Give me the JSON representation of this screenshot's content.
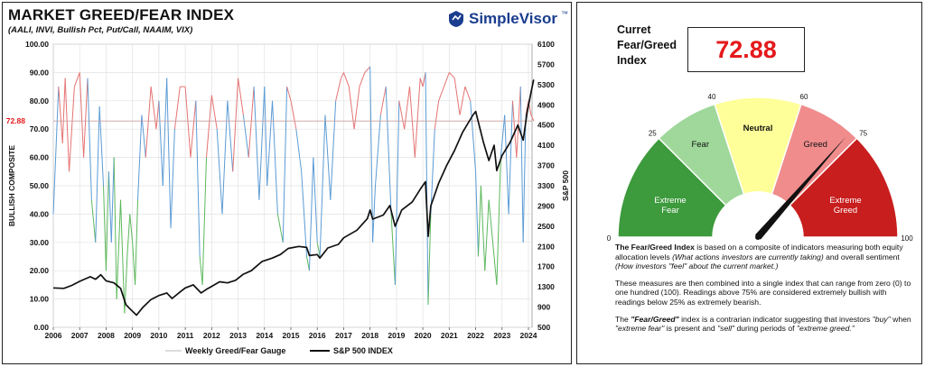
{
  "header": {
    "title": "MARKET GREED/FEAR INDEX",
    "subtitle": "(AALI, INVI, Bullish Pct, Put/Call, NAAIM, VIX)",
    "brand": "SimpleVisor",
    "brand_tm": "™"
  },
  "chart_data": {
    "type": "line",
    "title": "MARKET GREED/FEAR INDEX",
    "subtitle": "(AALI, INVI, Bullish Pct, Put/Call, NAAIM, VIX)",
    "ylabel_left": "BULLISH COMPOSITE",
    "ylabel_right": "S&P 500",
    "x_ticks": [
      "2006",
      "2007",
      "2008",
      "2009",
      "2010",
      "2011",
      "2012",
      "2013",
      "2014",
      "2015",
      "2016",
      "2017",
      "2018",
      "2019",
      "2020",
      "2021",
      "2022",
      "2023",
      "2024"
    ],
    "y_left_ticks": [
      "0.00",
      "10.00",
      "20.00",
      "30.00",
      "40.00",
      "50.00",
      "60.00",
      "70.00",
      "80.00",
      "90.00",
      "100.00"
    ],
    "y_left_range": [
      0,
      100
    ],
    "y_right_ticks": [
      "500",
      "900",
      "1300",
      "1700",
      "2100",
      "2500",
      "2900",
      "3300",
      "3700",
      "4100",
      "4500",
      "4900",
      "5300",
      "5700",
      "6100"
    ],
    "y_right_range": [
      500,
      6100
    ],
    "x_range": [
      2006,
      2024
    ],
    "reference_line": {
      "value": 72.88,
      "label": "72.88"
    },
    "grid": true,
    "legend_position": "bottom",
    "series": [
      {
        "name": "Weekly Greed/Fear Gauge",
        "axis": "left",
        "colors": {
          "high": "#e57373",
          "mid": "#5b9bd5",
          "low": "#5cb85c"
        },
        "x": [
          2006.0,
          2006.2,
          2006.35,
          2006.45,
          2006.6,
          2006.8,
          2007.0,
          2007.15,
          2007.3,
          2007.45,
          2007.6,
          2007.75,
          2007.9,
          2008.0,
          2008.1,
          2008.2,
          2008.3,
          2008.4,
          2008.55,
          2008.7,
          2008.8,
          2008.9,
          2009.0,
          2009.1,
          2009.2,
          2009.35,
          2009.5,
          2009.7,
          2009.9,
          2010.0,
          2010.15,
          2010.3,
          2010.45,
          2010.6,
          2010.8,
          2011.0,
          2011.2,
          2011.4,
          2011.55,
          2011.65,
          2011.8,
          2012.0,
          2012.2,
          2012.4,
          2012.6,
          2012.8,
          2013.0,
          2013.2,
          2013.4,
          2013.6,
          2013.8,
          2014.0,
          2014.1,
          2014.3,
          2014.5,
          2014.7,
          2014.85,
          2015.0,
          2015.2,
          2015.4,
          2015.6,
          2015.7,
          2015.85,
          2016.0,
          2016.1,
          2016.3,
          2016.5,
          2016.7,
          2016.9,
          2017.0,
          2017.2,
          2017.4,
          2017.6,
          2017.8,
          2018.0,
          2018.1,
          2018.2,
          2018.4,
          2018.6,
          2018.8,
          2018.95,
          2019.1,
          2019.3,
          2019.5,
          2019.7,
          2019.9,
          2020.0,
          2020.1,
          2020.2,
          2020.3,
          2020.45,
          2020.6,
          2020.8,
          2021.0,
          2021.2,
          2021.4,
          2021.6,
          2021.8,
          2022.0,
          2022.1,
          2022.2,
          2022.35,
          2022.5,
          2022.65,
          2022.8,
          2022.95,
          2023.1,
          2023.25,
          2023.4,
          2023.55,
          2023.7,
          2023.8,
          2023.9,
          2024.0,
          2024.1,
          2024.2
        ],
        "values": [
          40,
          85,
          65,
          88,
          55,
          85,
          90,
          60,
          88,
          45,
          30,
          78,
          50,
          20,
          55,
          30,
          60,
          10,
          45,
          5,
          25,
          40,
          30,
          15,
          45,
          75,
          60,
          85,
          70,
          80,
          50,
          88,
          35,
          70,
          85,
          85,
          60,
          80,
          25,
          15,
          60,
          82,
          70,
          40,
          80,
          55,
          88,
          75,
          60,
          85,
          45,
          85,
          50,
          80,
          40,
          30,
          85,
          80,
          70,
          55,
          25,
          20,
          60,
          30,
          25,
          75,
          45,
          80,
          88,
          90,
          85,
          70,
          85,
          90,
          92,
          30,
          50,
          75,
          85,
          40,
          15,
          80,
          70,
          85,
          60,
          88,
          85,
          90,
          8,
          40,
          70,
          80,
          85,
          90,
          88,
          75,
          85,
          80,
          55,
          25,
          50,
          20,
          45,
          30,
          15,
          60,
          75,
          40,
          80,
          60,
          85,
          30,
          75,
          80,
          75,
          72.88
        ]
      },
      {
        "name": "S&P 500 INDEX",
        "axis": "right",
        "color": "#111111",
        "x": [
          2006.0,
          2006.4,
          2006.7,
          2007.0,
          2007.4,
          2007.6,
          2007.8,
          2008.0,
          2008.3,
          2008.55,
          2008.75,
          2008.9,
          2009.15,
          2009.4,
          2009.7,
          2010.0,
          2010.3,
          2010.5,
          2010.8,
          2011.0,
          2011.3,
          2011.6,
          2011.8,
          2012.0,
          2012.3,
          2012.6,
          2012.9,
          2013.2,
          2013.5,
          2013.9,
          2014.3,
          2014.6,
          2014.9,
          2015.3,
          2015.6,
          2015.7,
          2016.0,
          2016.1,
          2016.4,
          2016.8,
          2017.0,
          2017.5,
          2017.9,
          2018.0,
          2018.1,
          2018.5,
          2018.75,
          2018.95,
          2019.2,
          2019.6,
          2019.9,
          2020.1,
          2020.2,
          2020.3,
          2020.6,
          2020.9,
          2021.2,
          2021.5,
          2021.9,
          2022.0,
          2022.3,
          2022.5,
          2022.7,
          2022.8,
          2023.0,
          2023.3,
          2023.6,
          2023.8,
          2023.95,
          2024.1,
          2024.2
        ],
        "values": [
          1280,
          1270,
          1330,
          1410,
          1500,
          1450,
          1540,
          1420,
          1380,
          1270,
          950,
          870,
          740,
          900,
          1050,
          1130,
          1180,
          1070,
          1200,
          1280,
          1340,
          1180,
          1250,
          1310,
          1400,
          1380,
          1430,
          1550,
          1620,
          1800,
          1870,
          1940,
          2060,
          2100,
          2080,
          1920,
          1940,
          1870,
          2070,
          2140,
          2270,
          2420,
          2650,
          2820,
          2640,
          2720,
          2910,
          2500,
          2820,
          2980,
          3230,
          3380,
          2300,
          2900,
          3350,
          3700,
          4000,
          4350,
          4700,
          4770,
          4150,
          3800,
          4100,
          3600,
          3900,
          4150,
          4500,
          4200,
          4750,
          5150,
          5400
        ]
      }
    ]
  },
  "legend": [
    {
      "label": "Weekly Greed/Fear Gauge"
    },
    {
      "label": "S&P 500 INDEX"
    }
  ],
  "gauge": {
    "title_line1": "Curret",
    "title_line2": "Fear/Greed",
    "title_line3": "Index",
    "value_text": "72.88",
    "value": 72.88,
    "segments": [
      {
        "name": "Extreme Fear",
        "line1": "Extreme",
        "line2": "Fear",
        "from": 0,
        "to": 25,
        "color": "#3d9a3d"
      },
      {
        "name": "Fear",
        "line1": "Fear",
        "line2": "",
        "from": 25,
        "to": 40,
        "color": "#9fd89a"
      },
      {
        "name": "Neutral",
        "line1": "Neutral",
        "line2": "",
        "from": 40,
        "to": 60,
        "color": "#ffff99"
      },
      {
        "name": "Greed",
        "line1": "Greed",
        "line2": "",
        "from": 60,
        "to": 75,
        "color": "#f08c8c"
      },
      {
        "name": "Extreme Greed",
        "line1": "Extreme",
        "line2": "Greed",
        "from": 75,
        "to": 100,
        "color": "#c81e1e"
      }
    ],
    "tick_labels": [
      "0",
      "25",
      "40",
      "60",
      "75",
      "100"
    ],
    "tick_values": [
      0,
      25,
      40,
      60,
      75,
      100
    ]
  },
  "description": {
    "p1_bold": "The Fear/Greed Index",
    "p1_a": " is based on a composite of indicators measuring both equity allocation levels ",
    "p1_italic1": "(What actions investors are currently taking)",
    "p1_b": " and overall sentiment ",
    "p1_italic2": "(How investors \"feel\" about the current market.)",
    "p2": "These measures are then combined into a single index that can range from zero (0) to one hundred (100). Readings above 75% are considered extremely bullish with readings below 25% as extremely bearish.",
    "p3_a": "The ",
    "p3_bold": "\"Fear/Greed\"",
    "p3_b": " index is a contrarian indicator suggesting that investors ",
    "p3_i1": "\"buy\"",
    "p3_c": " when ",
    "p3_i2": "\"extreme fear\"",
    "p3_d": " is present and ",
    "p3_i3": "\"sell\"",
    "p3_e": " during periods of ",
    "p3_i4": "\"extreme greed.\""
  }
}
